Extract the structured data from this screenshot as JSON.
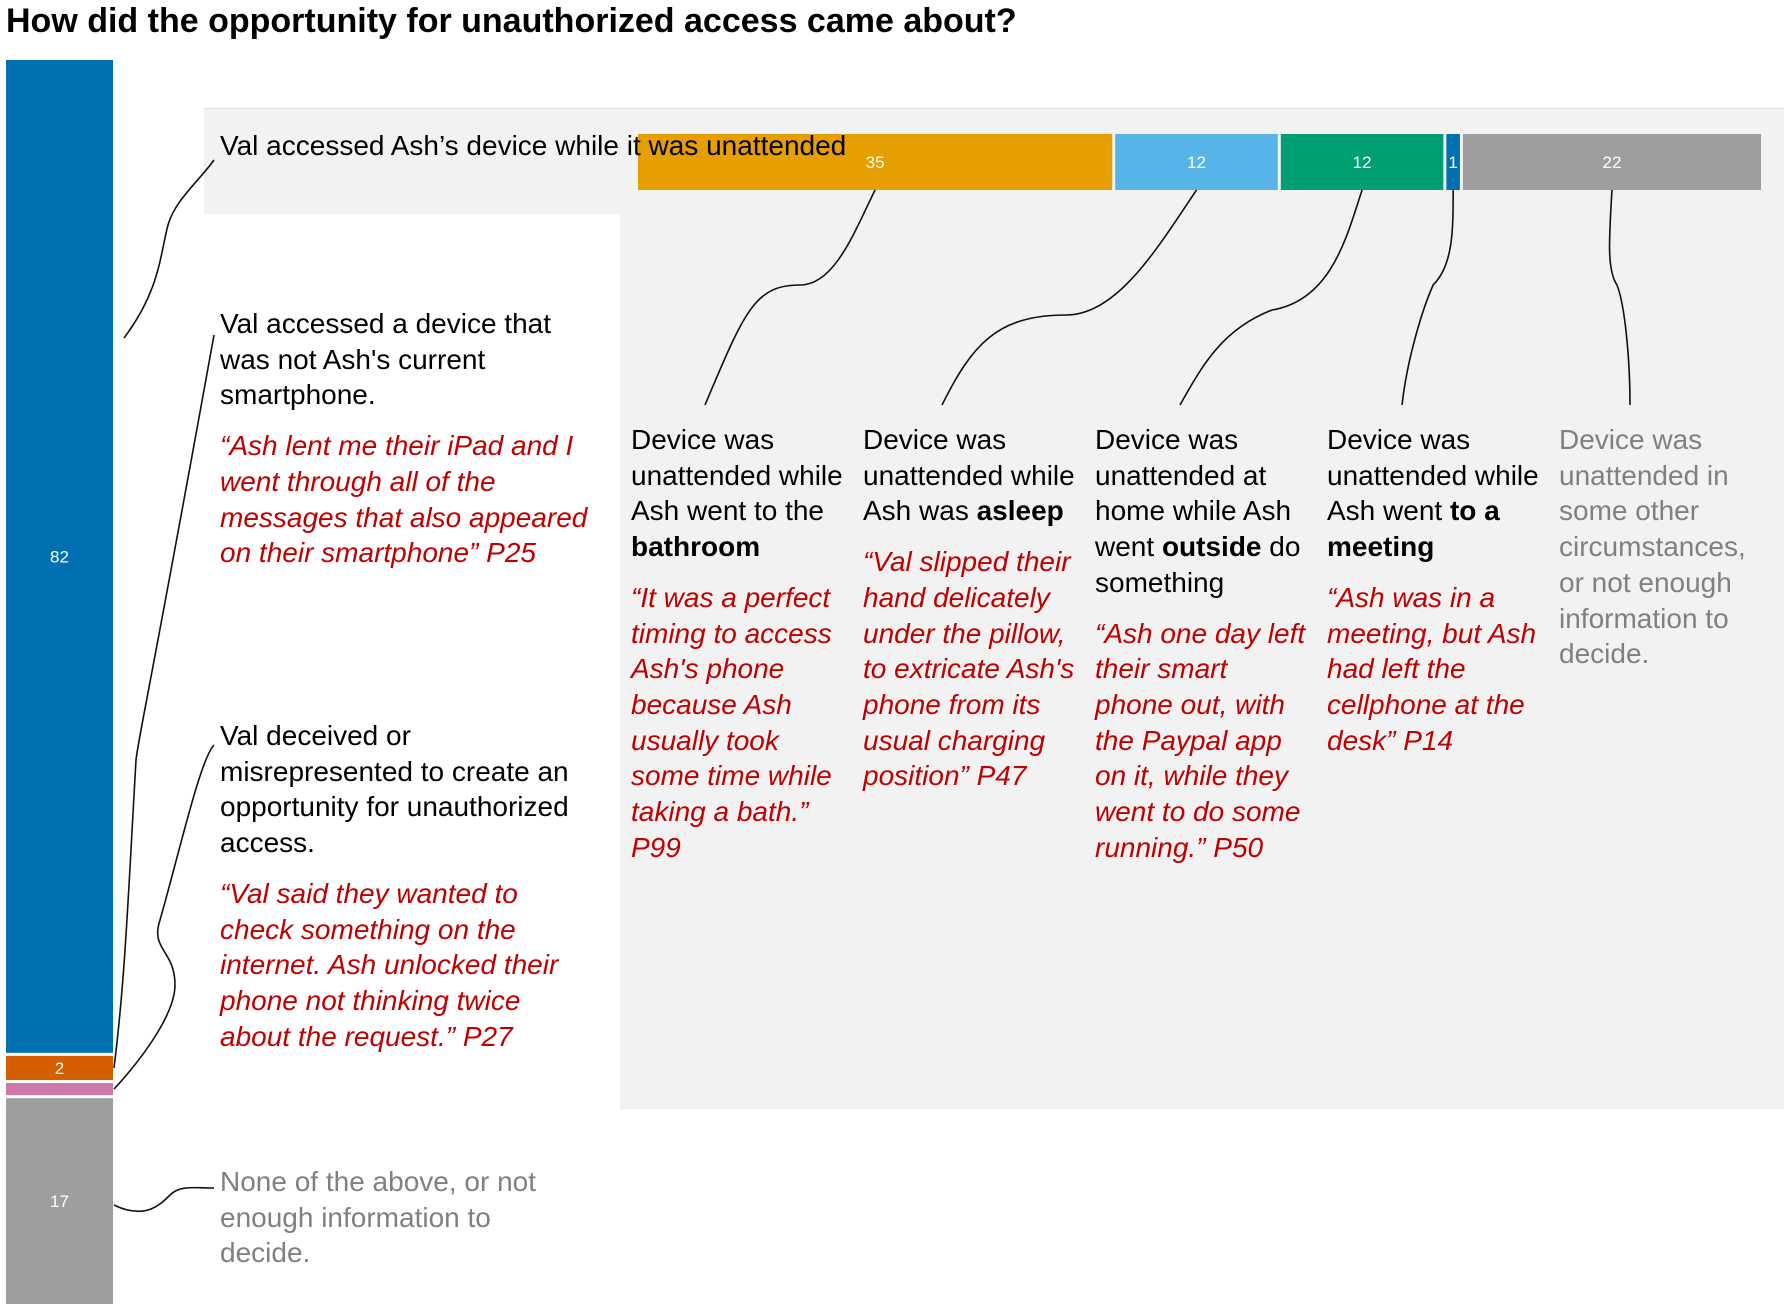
{
  "title": "How did the opportunity for unauthorized access came about?",
  "colors": {
    "blue": "#0070b0",
    "orange": "#d55e00",
    "pink": "#cc79a7",
    "gray": "#9e9e9e",
    "amber": "#e69f00",
    "skyblue": "#56b4e9",
    "green": "#009e73",
    "quote": "#c00000",
    "panel": "#f2f2f2"
  },
  "chart_data": [
    {
      "type": "bar",
      "orientation": "vertical-stacked",
      "title": "How did the opportunity for unauthorized access came about?",
      "series": [
        {
          "name": "Val accessed Ash's device while it was unattended",
          "value": 82,
          "color": "#0070b0"
        },
        {
          "name": "Val accessed a device that was not Ash's current smartphone.",
          "value": 2,
          "color": "#d55e00"
        },
        {
          "name": "Val deceived or misrepresented to create an opportunity for unauthorized access.",
          "value": 1,
          "color": "#cc79a7"
        },
        {
          "name": "None of the above, or not enough information to decide.",
          "value": 17,
          "color": "#9e9e9e"
        }
      ],
      "data_labels": [
        "82",
        "2",
        "",
        "17"
      ]
    },
    {
      "type": "bar",
      "orientation": "horizontal-stacked",
      "series": [
        {
          "name": "Device was unattended while Ash went to the bathroom",
          "value": 35,
          "color": "#e69f00"
        },
        {
          "name": "Device was unattended while Ash was asleep",
          "value": 12,
          "color": "#56b4e9"
        },
        {
          "name": "Device was unattended at home while Ash went outside do something",
          "value": 12,
          "color": "#009e73"
        },
        {
          "name": "Device was unattended while Ash went to a meeting",
          "value": 1,
          "color": "#0070b0"
        },
        {
          "name": "Device was unattended in some other circumstances, or not enough information to decide.",
          "value": 22,
          "color": "#9e9e9e"
        }
      ],
      "data_labels": [
        "35",
        "12",
        "12",
        "1",
        "22"
      ]
    }
  ],
  "categories": {
    "unattended": {
      "label": "Val accessed Ash’s device while it was unattended"
    },
    "other_device": {
      "label": "Val accessed a device that was not Ash's current smartphone.",
      "quote": "“Ash lent me their iPad and I went through all of the messages that also appeared on their smartphone” P25"
    },
    "deceived": {
      "label": "Val deceived or misrepresented to create an opportunity for unauthorized access.",
      "quote": "“Val said they wanted to check something on the internet. Ash unlocked their phone not thinking twice about the request.”  P27"
    },
    "none": {
      "label": "None of the above, or not enough information to decide."
    }
  },
  "subcategories": {
    "bathroom": {
      "pre": "Device was unattended while Ash went to the ",
      "bold": "bathroom",
      "post": "",
      "quote": "“It was a perfect timing to access Ash's phone because Ash usually took some time while taking a bath.” P99"
    },
    "asleep": {
      "pre": "Device was unattended while Ash was ",
      "bold": "asleep",
      "post": "",
      "quote": "“Val slipped their hand delicately under the pillow, to extricate Ash's phone from its usual charging position” P47"
    },
    "outside": {
      "pre": "Device was unattended at home while Ash went ",
      "bold": "outside",
      "post": " do something",
      "quote": "“Ash one day left their smart phone out, with the Paypal app on it, while they went to do some running.” P50"
    },
    "meeting": {
      "pre": "Device was unattended while Ash went ",
      "bold": "to a meeting",
      "post": "",
      "quote": "“Ash was in a meeting, but Ash had left the cellphone at the desk” P14"
    },
    "other": {
      "text": "Device was unattended in some other circumstances, or not enough information to decide."
    }
  }
}
